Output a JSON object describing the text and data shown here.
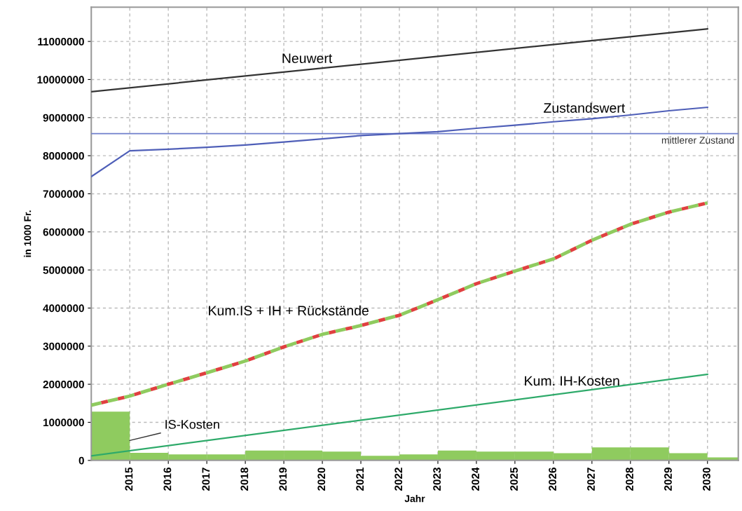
{
  "chart_data": {
    "type": "line",
    "xlabel": "Jahr",
    "ylabel": "in 1000 Fr.",
    "xlim": [
      2014,
      2030.8
    ],
    "xticks": [
      2015,
      2016,
      2017,
      2018,
      2019,
      2020,
      2021,
      2022,
      2023,
      2024,
      2025,
      2026,
      2027,
      2028,
      2029,
      2030
    ],
    "ylim": [
      0,
      11900000
    ],
    "yticks": [
      0,
      1000000,
      2000000,
      3000000,
      4000000,
      5000000,
      6000000,
      7000000,
      8000000,
      9000000,
      10000000,
      11000000
    ],
    "grid": true,
    "legend": false,
    "series": [
      {
        "name": "IS-Kosten",
        "type": "bar",
        "color": "#8fcb5f",
        "x": [
          2014.5,
          2015.5,
          2016.5,
          2017.5,
          2018.5,
          2019.5,
          2020.5,
          2021.5,
          2022.5,
          2023.5,
          2024.5,
          2025.5,
          2026.5,
          2027.5,
          2028.5,
          2029.5,
          2030.5
        ],
        "values": [
          1280000,
          200000,
          160000,
          160000,
          260000,
          260000,
          230000,
          120000,
          160000,
          260000,
          230000,
          230000,
          190000,
          340000,
          340000,
          190000,
          80000
        ]
      },
      {
        "name": "Kum. IH-Kosten",
        "color": "#2eaa6a",
        "x": [
          2014,
          2030
        ],
        "values": [
          120000,
          2260000
        ]
      },
      {
        "name": "Kum.IS + IH + Rückstände",
        "color": "#8fcb5f",
        "line_style": "dashed",
        "x": [
          2014,
          2015,
          2016,
          2017,
          2018,
          2019,
          2020,
          2021,
          2022,
          2023,
          2024,
          2025,
          2026,
          2027,
          2028,
          2029,
          2030
        ],
        "values": [
          1450000,
          1690000,
          2000000,
          2300000,
          2610000,
          2980000,
          3310000,
          3540000,
          3810000,
          4220000,
          4640000,
          4970000,
          5290000,
          5780000,
          6200000,
          6520000,
          6760000
        ]
      },
      {
        "name": "Zustandswert",
        "color": "#4f5fb8",
        "x": [
          2014,
          2015,
          2016,
          2017,
          2018,
          2019,
          2020,
          2021,
          2022,
          2023,
          2024,
          2025,
          2026,
          2027,
          2028,
          2029,
          2030
        ],
        "values": [
          7450000,
          8130000,
          8170000,
          8220000,
          8280000,
          8360000,
          8440000,
          8530000,
          8580000,
          8630000,
          8720000,
          8800000,
          8890000,
          8970000,
          9070000,
          9180000,
          9270000
        ]
      },
      {
        "name": "Neuwert",
        "color": "#333333",
        "x": [
          2014,
          2030
        ],
        "values": [
          9680000,
          11330000
        ]
      }
    ],
    "ref_lines": [
      {
        "axis": "y",
        "value": 8580000,
        "label": "mittlerer Zustand",
        "color": "#6f7fcc"
      }
    ]
  }
}
